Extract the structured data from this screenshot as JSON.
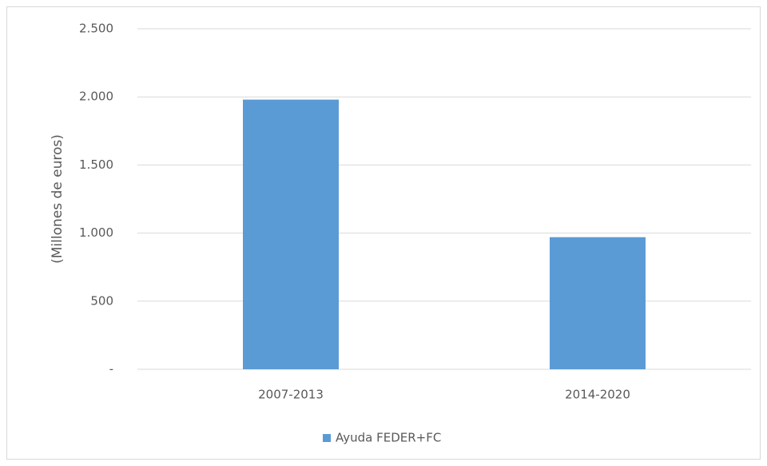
{
  "chart_data": {
    "type": "bar",
    "y_label": "(Millones de euros)",
    "categories": [
      "2007-2013",
      "2014-2020"
    ],
    "series": [
      {
        "name": "Ayuda FEDER+FC",
        "color": "#5b9bd5",
        "values": [
          1980,
          970
        ]
      }
    ],
    "ylim": [
      0,
      2500
    ],
    "yticks": [
      {
        "value": 0,
        "label": "-"
      },
      500,
      {
        "value": 1000,
        "label": "1.000"
      },
      {
        "value": 1500,
        "label": "1.500"
      },
      {
        "value": 2000,
        "label": "2.000"
      },
      {
        "value": 2500,
        "label": "2.500"
      }
    ],
    "grid": true,
    "legend": "bottom"
  }
}
